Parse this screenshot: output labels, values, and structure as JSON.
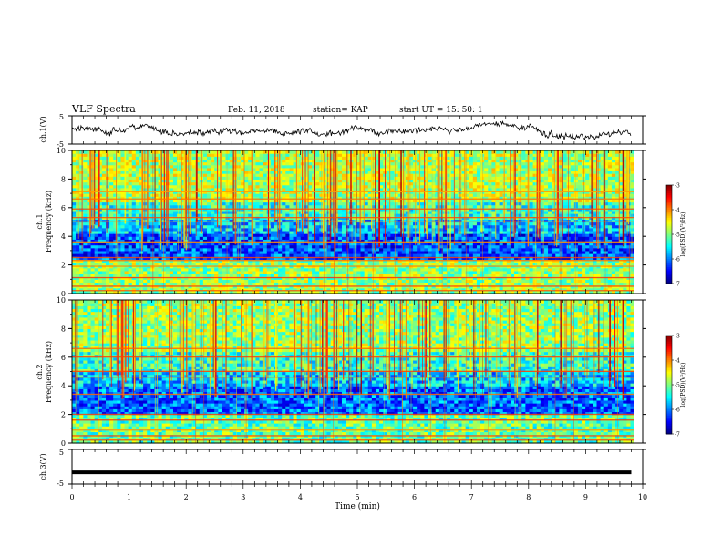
{
  "header": {
    "title": "VLF Spectra",
    "date": "Feb. 11, 2018",
    "station": "station= KAP",
    "start_ut": "start  UT =   15: 50: 1"
  },
  "chart_data": [
    {
      "type": "line",
      "panel": "ch1-waveform",
      "ylabel": "ch.1(V)",
      "ylim": [
        -5,
        5
      ],
      "yticks": [
        "5",
        "-5"
      ],
      "xlim": [
        0,
        10
      ],
      "color": "#000000",
      "description_values": "noisy trace centered near 0 V, amplitude about ±2 V, ending at 9.8 min"
    },
    {
      "type": "heatmap",
      "panel": "ch1-spectrogram",
      "ylabel_line1": "ch.1",
      "ylabel_line2": "Frequency (kHz)",
      "ylim": [
        0,
        10
      ],
      "yticks": [
        "0",
        "2",
        "4",
        "6",
        "8",
        "10"
      ],
      "xlim": [
        0,
        10
      ],
      "colorbar": {
        "label": "log(PSD)(V²/Hz)",
        "range": [
          -7,
          -3
        ],
        "ticks": [
          "-3",
          "-4",
          "-5",
          "-6",
          "-7"
        ]
      },
      "bands": [
        {
          "from": 0,
          "to": 2.4,
          "level": -4.9
        },
        {
          "from": 2.4,
          "to": 4.2,
          "level": -6.2
        },
        {
          "from": 4.2,
          "to": 5.2,
          "level": -5.7
        },
        {
          "from": 5.2,
          "to": 6.5,
          "level": -5.3
        },
        {
          "from": 6.5,
          "to": 10,
          "level": -4.8
        }
      ],
      "lines_khz": [
        0.2,
        0.5,
        1.1,
        1.9,
        2.3,
        2.5,
        3.6,
        5.0,
        5.3,
        5.9,
        6.6,
        7.1
      ]
    },
    {
      "type": "heatmap",
      "panel": "ch2-spectrogram",
      "ylabel_line1": "ch.2",
      "ylabel_line2": "Frequency (kHz)",
      "ylim": [
        0,
        10
      ],
      "yticks": [
        "0",
        "2",
        "4",
        "6",
        "8",
        "10"
      ],
      "xlim": [
        0,
        10
      ],
      "colorbar": {
        "label": "log(PSD)(V²/Hz)",
        "range": [
          -7,
          -3
        ],
        "ticks": [
          "-3",
          "-4",
          "-5",
          "-6",
          "-7"
        ]
      },
      "bands": [
        {
          "from": 0,
          "to": 2.0,
          "level": -5.1
        },
        {
          "from": 2.0,
          "to": 4.0,
          "level": -6.1
        },
        {
          "from": 4.0,
          "to": 5.0,
          "level": -5.7
        },
        {
          "from": 5.0,
          "to": 6.4,
          "level": -5.3
        },
        {
          "from": 6.4,
          "to": 10,
          "level": -4.9
        }
      ],
      "lines_khz": [
        0.2,
        0.5,
        0.9,
        1.6,
        2.0,
        3.4,
        4.6,
        5.0,
        6.0,
        6.6
      ]
    },
    {
      "type": "line",
      "panel": "ch3-waveform",
      "ylabel": "ch.3(V)",
      "ylim": [
        -5,
        5
      ],
      "yticks": [
        "5",
        "-5"
      ],
      "xlim": [
        0,
        10
      ],
      "xlabel": "Time (min)",
      "xticks": [
        "0",
        "1",
        "2",
        "3",
        "4",
        "5",
        "6",
        "7",
        "8",
        "9",
        "10"
      ],
      "x": [
        0,
        9.8
      ],
      "y": [
        -1.6,
        -1.6
      ],
      "color": "#000000"
    }
  ]
}
